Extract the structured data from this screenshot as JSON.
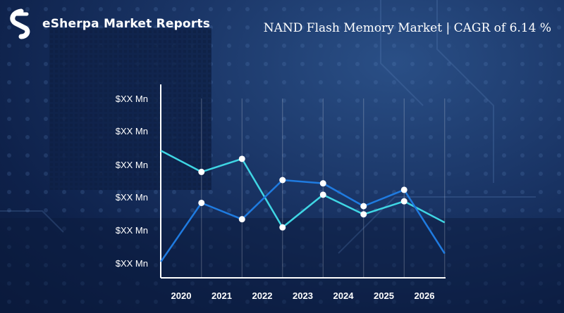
{
  "brand": {
    "name": "eSherpa Market Reports",
    "logo": "esherpa-logo-icon"
  },
  "title": "NAND Flash Memory Market | CAGR of 6.14 %",
  "colors": {
    "series_a": "#3fd6e4",
    "series_b": "#1f7be0",
    "marker": "#ffffff",
    "axis": "#ffffff"
  },
  "chart_data": {
    "type": "line",
    "title": "NAND Flash Memory Market | CAGR of 6.14 %",
    "xlabel": "",
    "ylabel": "",
    "categories": [
      "2020",
      "2021",
      "2022",
      "2023",
      "2024",
      "2025",
      "2026"
    ],
    "y_tick_labels": [
      "$XX Mn",
      "$XX Mn",
      "$XX Mn",
      "$XX Mn",
      "$XX Mn",
      "$XX Mn"
    ],
    "ylim": [
      0,
      5
    ],
    "grid": "vertical",
    "series": [
      {
        "x": [
          -0.5,
          0.5,
          1.5,
          2.5,
          3.5,
          4.5,
          5.5,
          6.5
        ],
        "y": [
          3.4,
          2.75,
          3.15,
          1.05,
          2.05,
          1.45,
          1.85,
          1.2
        ],
        "markers": [
          0.5,
          1.5,
          2.5,
          3.5,
          4.5,
          5.5
        ]
      },
      {
        "x": [
          -0.5,
          0.5,
          1.5,
          2.5,
          3.5,
          4.5,
          5.5,
          6.5
        ],
        "y": [
          0.0,
          1.8,
          1.3,
          2.5,
          2.4,
          1.7,
          2.2,
          0.25
        ],
        "markers": [
          0.5,
          1.5,
          2.5,
          3.5,
          4.5,
          5.5
        ]
      }
    ]
  }
}
